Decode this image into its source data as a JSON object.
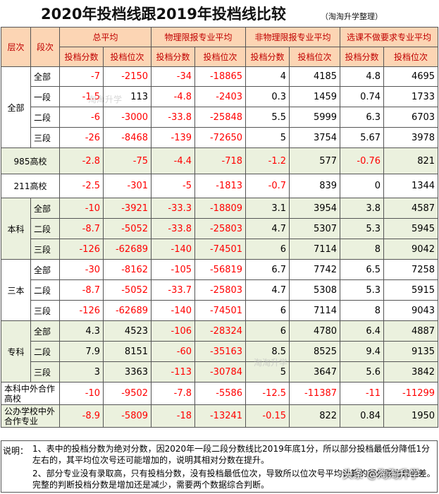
{
  "title": "2020年投档线跟2019年投档线比较",
  "subtitle": "（淘淘升学整理）",
  "header": {
    "level": "层次",
    "segment": "段次",
    "groups": [
      "总平均",
      "物理限报专业平均",
      "非物理限报专业平均",
      "选课不做要求专业平均"
    ],
    "sub_score": "投档分数",
    "sub_rank": "投档位次"
  },
  "groups": [
    {
      "label": "全部",
      "green": false,
      "rows": [
        {
          "seg": "全部",
          "v": [
            "-7",
            "-2150",
            "-34",
            "-18865",
            "4",
            "4185",
            "4.8",
            "4695"
          ]
        },
        {
          "seg": "一段",
          "v": [
            "-1.5",
            "113",
            "-4.8",
            "-2403",
            "0.3",
            "1459",
            "0.74",
            "1733"
          ]
        },
        {
          "seg": "二段",
          "v": [
            "-6",
            "-3000",
            "-33.8",
            "-25848",
            "5.5",
            "5999",
            "6.3",
            "6703"
          ]
        },
        {
          "seg": "三段",
          "v": [
            "-26",
            "-8468",
            "-139",
            "-72650",
            "5",
            "3754",
            "5.67",
            "3978"
          ]
        }
      ]
    },
    {
      "label": "985高校",
      "green": true,
      "single": true,
      "rows": [
        {
          "seg": "",
          "v": [
            "-2.8",
            "-75",
            "-4.4",
            "-718",
            "-1.2",
            "577",
            "-0.76",
            "821"
          ]
        }
      ]
    },
    {
      "label": "211高校",
      "green": false,
      "single": true,
      "rows": [
        {
          "seg": "",
          "v": [
            "-2.5",
            "-301",
            "-5",
            "-1813",
            "-0.7",
            "839",
            "0",
            "1344"
          ]
        }
      ]
    },
    {
      "label": "本科",
      "green": true,
      "rows": [
        {
          "seg": "全部",
          "v": [
            "-10",
            "-3921",
            "-33.3",
            "-18809",
            "3.1",
            "3954",
            "3.8",
            "4587"
          ]
        },
        {
          "seg": "二段",
          "v": [
            "-8.7",
            "-5052",
            "-33.8",
            "-25803",
            "4.7",
            "5307",
            "5.3",
            "5945"
          ]
        },
        {
          "seg": "三段",
          "v": [
            "-126",
            "-62689",
            "-140",
            "-74501",
            "6",
            "7114",
            "8",
            "9042"
          ]
        }
      ]
    },
    {
      "label": "三本",
      "green": false,
      "rows": [
        {
          "seg": "全部",
          "v": [
            "-30",
            "-8162",
            "-105",
            "-56819",
            "6.7",
            "7742",
            "6.5",
            "7258"
          ]
        },
        {
          "seg": "二段",
          "v": [
            "-8.7",
            "-5052",
            "-33.7",
            "-25803",
            "4.7",
            "5308",
            "5.3",
            "5915"
          ]
        },
        {
          "seg": "三段",
          "v": [
            "-126",
            "-62689",
            "-140",
            "-74501",
            "6",
            "7114",
            "8",
            "9043"
          ]
        }
      ]
    },
    {
      "label": "专科",
      "green": true,
      "rows": [
        {
          "seg": "全部",
          "v": [
            "4.3",
            "4523",
            "-106",
            "-28324",
            "6",
            "4780",
            "6.4",
            "4887"
          ]
        },
        {
          "seg": "二段",
          "v": [
            "7.9",
            "8151",
            "-60",
            "-35163",
            "8.5",
            "8525",
            "9.4",
            "9135"
          ]
        },
        {
          "seg": "三段",
          "v": [
            "3",
            "3363",
            "-113",
            "-30784",
            "5",
            "3647",
            "5.6",
            "3842"
          ]
        }
      ]
    },
    {
      "label": "本科中外合作高校",
      "green": false,
      "single": true,
      "wrap": true,
      "rows": [
        {
          "seg": "",
          "v": [
            "-10",
            "-9502",
            "-7.8",
            "-5586",
            "-12.5",
            "-11387",
            "-11",
            "-11299"
          ]
        }
      ]
    },
    {
      "label": "公办学校中外合作专业",
      "green": true,
      "single": true,
      "wrap": true,
      "rows": [
        {
          "seg": "",
          "v": [
            "-8.9",
            "-5809",
            "-18",
            "-13241",
            "-0.15",
            "822",
            "0.84",
            "1950"
          ]
        }
      ]
    }
  ],
  "notes": {
    "head": "说明：",
    "n1": "1、表中的投档分数为绝对分数，因2020年一段二段分数线比2019年底1分，所以部分投档最低分降低1分左右的，其平均位次号还可能增加的，说明其相对分数在提升。",
    "n2": "2、部分专业没有录取高，只有投档分数，没有投档最低位次，导致所以位次号平均计算的部分数出现偏差。完整的判断投档分数是增加还是减少，需要两个数据综合判断。"
  },
  "watermarks": {
    "w1": "淘淘升学",
    "w2": "淘淘升学",
    "footer": "头条 @淘淘升学"
  }
}
